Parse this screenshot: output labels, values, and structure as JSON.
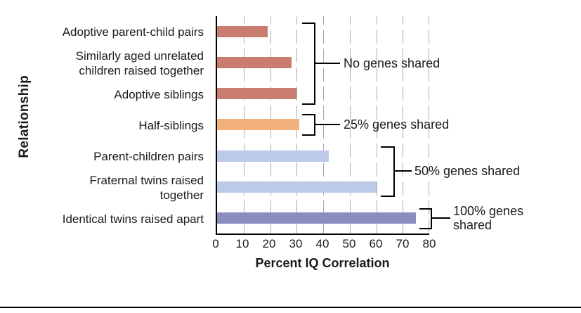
{
  "chart_data": {
    "type": "bar",
    "orientation": "horizontal",
    "xlabel": "Percent IQ Correlation",
    "ylabel": "Relationship",
    "xlim": [
      0,
      80
    ],
    "xticks": [
      0,
      10,
      20,
      30,
      40,
      50,
      60,
      70,
      80
    ],
    "grid": "vertical dashed gridlines every 10",
    "bars": [
      {
        "label": "Adoptive parent-child pairs",
        "value": 19,
        "color": "#c87d6e",
        "group": "No genes shared"
      },
      {
        "label": "Similarly aged unrelated\nchildren raised together",
        "value": 28,
        "color": "#c87d6e",
        "group": "No genes shared"
      },
      {
        "label": "Adoptive siblings",
        "value": 30,
        "color": "#c87d6e",
        "group": "No genes shared"
      },
      {
        "label": "Half-siblings",
        "value": 31,
        "color": "#f2b07d",
        "group": "25% genes shared"
      },
      {
        "label": "Parent-children pairs",
        "value": 42,
        "color": "#bccae8",
        "group": "50% genes shared"
      },
      {
        "label": "Fraternal twins raised\ntogether",
        "value": 60,
        "color": "#bccae8",
        "group": "50% genes shared"
      },
      {
        "label": "Identical twins raised apart",
        "value": 75,
        "color": "#8b8cc0",
        "group": "100% genes shared"
      }
    ],
    "annotations": [
      {
        "label": "No genes shared",
        "bars": [
          0,
          1,
          2
        ]
      },
      {
        "label": "25% genes shared",
        "bars": [
          3
        ]
      },
      {
        "label": "50% genes shared",
        "bars": [
          4,
          5
        ]
      },
      {
        "label": "100% genes\nshared",
        "bars": [
          6
        ]
      }
    ]
  }
}
